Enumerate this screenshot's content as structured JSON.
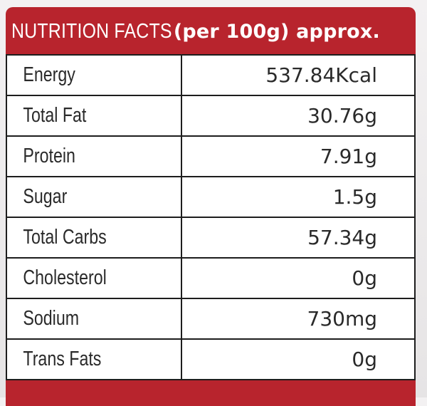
{
  "header": {
    "title_part1": "NUTRITION FACTS",
    "title_part2": "(per 100g) approx."
  },
  "colors": {
    "header_bg": "#b8242d",
    "header_text": "#ffffff",
    "border": "#1d1d1d",
    "cell_text": "#2a2a2a"
  },
  "rows": [
    {
      "label": "Energy",
      "value": "537.84Kcal"
    },
    {
      "label": "Total Fat",
      "value": "30.76g"
    },
    {
      "label": "Protein",
      "value": "7.91g"
    },
    {
      "label": "Sugar",
      "value": "1.5g"
    },
    {
      "label": "Total Carbs",
      "value": "57.34g"
    },
    {
      "label": "Cholesterol",
      "value": "0g"
    },
    {
      "label": "Sodium",
      "value": "730mg"
    },
    {
      "label": "Trans Fats",
      "value": "0g"
    }
  ]
}
